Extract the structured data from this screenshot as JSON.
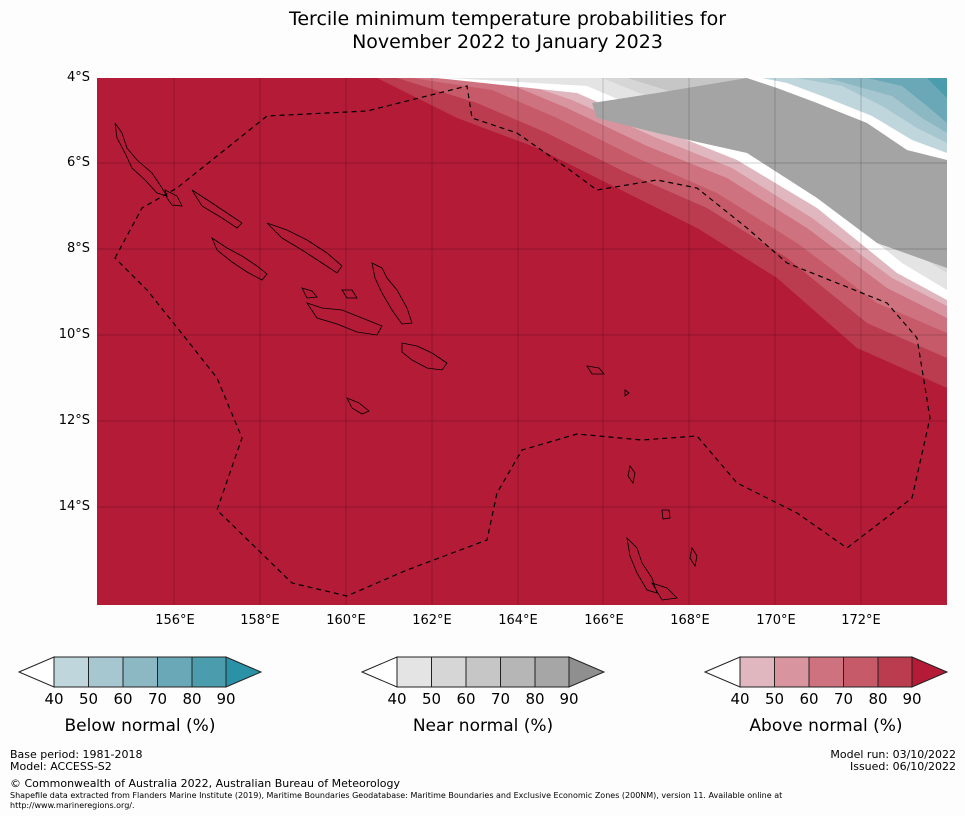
{
  "title": {
    "line1": "Tercile minimum temperature probabilities for",
    "line2": "November 2022 to January 2023"
  },
  "map": {
    "lat_labels": [
      "4°S",
      "6°S",
      "8°S",
      "10°S",
      "12°S",
      "14°S"
    ],
    "lon_labels": [
      "156°E",
      "158°E",
      "160°E",
      "162°E",
      "164°E",
      "166°E",
      "168°E",
      "170°E",
      "172°E"
    ],
    "colors": {
      "above_full": "#b31b37",
      "near_gray": "#a4a4a4",
      "below_teal": "#67a9b9"
    }
  },
  "colorbars": [
    {
      "name": "below",
      "title": "Below normal (%)",
      "ticks": [
        "40",
        "50",
        "60",
        "70",
        "80",
        "90"
      ],
      "colors": [
        "#bfd6dc",
        "#a6c7cf",
        "#8cb8c3",
        "#6aa8b7",
        "#4b9dae",
        "#2a91a6"
      ]
    },
    {
      "name": "near",
      "title": "Near normal (%)",
      "ticks": [
        "40",
        "50",
        "60",
        "70",
        "80",
        "90"
      ],
      "colors": [
        "#e4e4e4",
        "#d6d6d6",
        "#c6c6c6",
        "#b6b6b6",
        "#a6a6a6",
        "#8f8f8f"
      ]
    },
    {
      "name": "above",
      "title": "Above normal (%)",
      "ticks": [
        "40",
        "50",
        "60",
        "70",
        "80",
        "90"
      ],
      "colors": [
        "#e0b7bf",
        "#d9959f",
        "#cf727f",
        "#c75a69",
        "#bb3b4f",
        "#b31b37"
      ]
    }
  ],
  "footer": {
    "base_period": "Base period: 1981-2018",
    "model": "Model: ACCESS-S2",
    "model_run": "Model run: 03/10/2022",
    "issued": "Issued: 06/10/2022",
    "copyright": "© Commonwealth of Australia 2022, Australian Bureau of Meteorology",
    "shapefile_line1": "Shapefile data extracted from Flanders Marine Institute (2019), Maritime Boundaries Geodatabase: Maritime Boundaries and Exclusive Economic Zones (200NM), version 11. Available online at",
    "shapefile_line2": "http://www.marineregions.org/."
  }
}
